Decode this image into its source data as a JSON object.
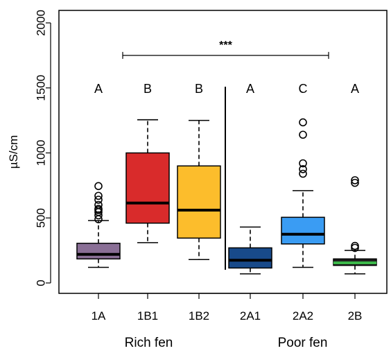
{
  "chart_data": {
    "type": "box",
    "ylabel": "µS/cm",
    "ylim": [
      0,
      2000
    ],
    "yticks": [
      "0",
      "500",
      "1000",
      "1500",
      "2000"
    ],
    "categories": [
      "1A",
      "1B1",
      "1B2",
      "2A1",
      "2A2",
      "2B"
    ],
    "letters": [
      "A",
      "B",
      "B",
      "A",
      "C",
      "A"
    ],
    "groups": [
      {
        "label": "Rich fen",
        "members": [
          "1A",
          "1B1",
          "1B2"
        ]
      },
      {
        "label": "Poor fen",
        "members": [
          "2A1",
          "2A2",
          "2B"
        ]
      }
    ],
    "significance": {
      "label": "***",
      "from": "1A",
      "to": "2A2",
      "y": 1750
    },
    "boxes": [
      {
        "category": "1A",
        "color": "#8a6f96",
        "median_color": "#000000",
        "whisker_low": 120,
        "q1": 185,
        "median": 220,
        "q3": 305,
        "whisker_high": 480,
        "outliers": [
          490,
          520,
          545,
          560,
          570,
          600,
          640,
          670,
          745
        ]
      },
      {
        "category": "1B1",
        "color": "#d92b2b",
        "median_color": "#000000",
        "whisker_low": 310,
        "q1": 460,
        "median": 615,
        "q3": 1000,
        "whisker_high": 1255,
        "outliers": []
      },
      {
        "category": "1B2",
        "color": "#fcbd2c",
        "median_color": "#000000",
        "whisker_low": 180,
        "q1": 345,
        "median": 560,
        "q3": 900,
        "whisker_high": 1250,
        "outliers": []
      },
      {
        "category": "2A1",
        "color": "#184a8a",
        "median_color": "#000000",
        "whisker_low": 70,
        "q1": 115,
        "median": 175,
        "q3": 270,
        "whisker_high": 430,
        "outliers": []
      },
      {
        "category": "2A2",
        "color": "#3a9cf3",
        "median_color": "#000000",
        "whisker_low": 120,
        "q1": 300,
        "median": 375,
        "q3": 505,
        "whisker_high": 710,
        "outliers": [
          840,
          875,
          920,
          1140,
          1235
        ]
      },
      {
        "category": "2B",
        "color": "#1f1f1f",
        "median_color": "#3cb84a",
        "whisker_low": 70,
        "q1": 135,
        "median": 155,
        "q3": 185,
        "whisker_high": 250,
        "outliers": [
          270,
          285,
          770,
          790
        ]
      }
    ]
  }
}
